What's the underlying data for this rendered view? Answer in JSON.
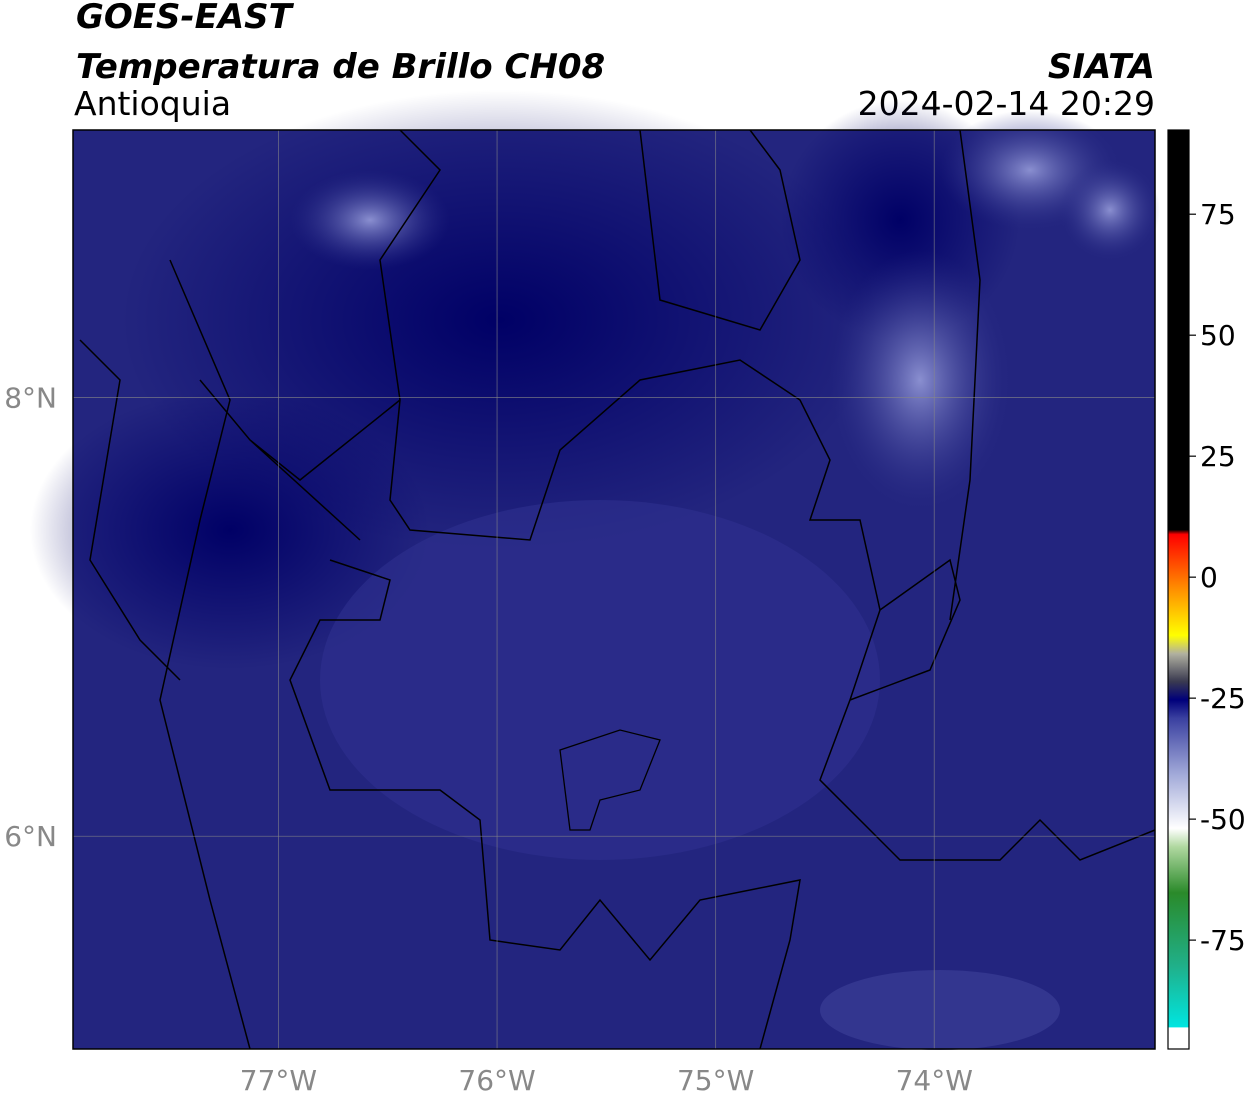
{
  "header": {
    "title": "GOES-EAST",
    "subtitle": "Temperatura de Brillo CH08",
    "region": "Antioquia",
    "source": "SIATA",
    "timestamp": "2024-02-14 20:29"
  },
  "map": {
    "xlim": [
      -77.94,
      -72.99
    ],
    "ylim": [
      5.03,
      9.22
    ],
    "xticks": [
      {
        "value": -77,
        "label": "77°W"
      },
      {
        "value": -76,
        "label": "76°W"
      },
      {
        "value": -75,
        "label": "75°W"
      },
      {
        "value": -74,
        "label": "74°W"
      }
    ],
    "yticks": [
      {
        "value": 8,
        "label": "8°N"
      },
      {
        "value": 6,
        "label": "6°N"
      }
    ]
  },
  "colorbar": {
    "lim": [
      -97.5,
      92.4
    ],
    "ticks": [
      75,
      50,
      25,
      0,
      -25,
      -50,
      -75
    ]
  }
}
